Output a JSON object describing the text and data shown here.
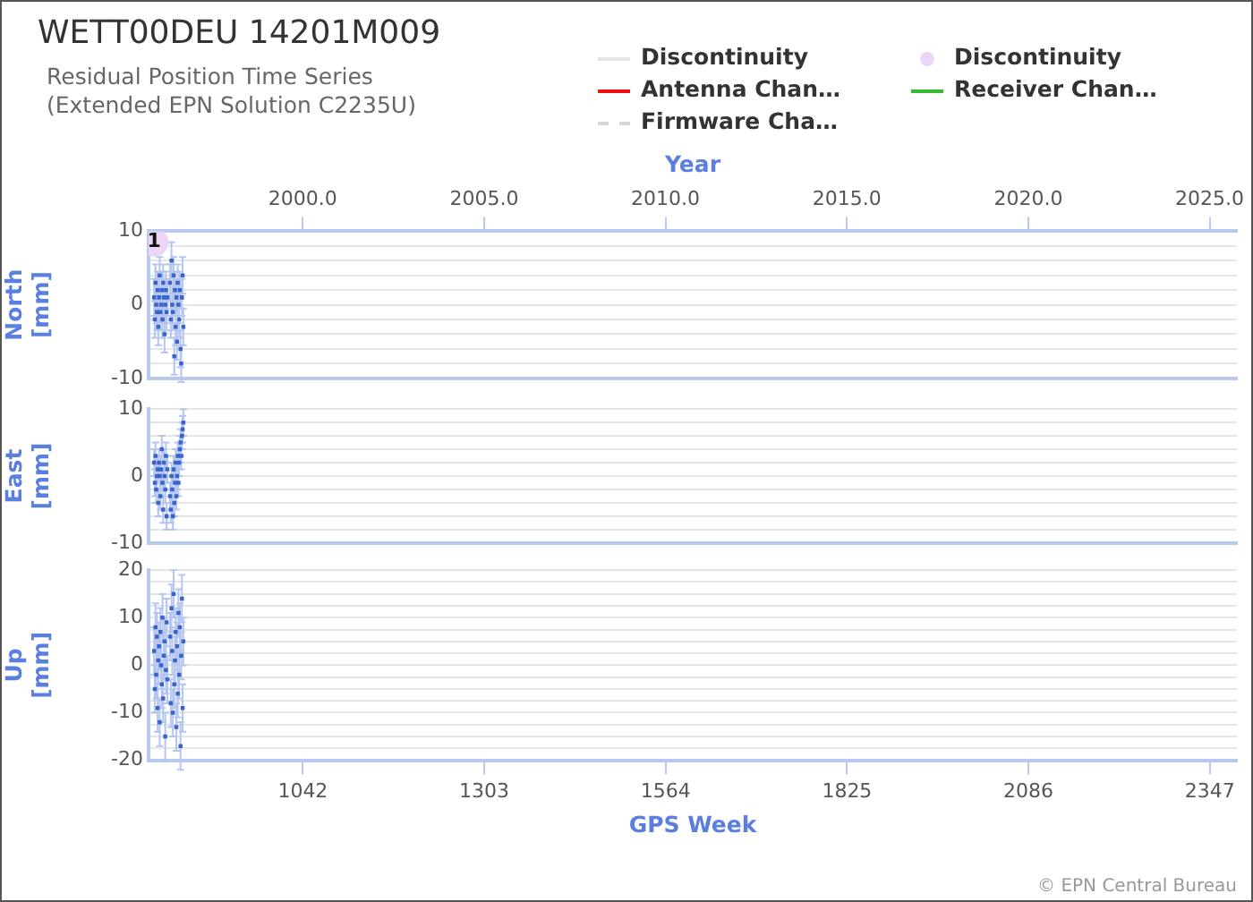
{
  "chart_data": [
    {
      "type": "scatter",
      "annotations": [
        {
          "text": "1",
          "x": 828,
          "y": 8.5
        }
      ],
      "title": "WETT00DEU 14201M009",
      "subtitle": "Residual Position Time Series\n(Extended EPN Solution C2235U)",
      "ylabel": "North [mm]",
      "x2label": "Year",
      "legend": "top right",
      "grid": "y",
      "marker": "square",
      "tick_labels": "y",
      "x": [
        828,
        829,
        830,
        831,
        832,
        833,
        834,
        835,
        836,
        837,
        838,
        839,
        840,
        841,
        842,
        843,
        844,
        845,
        846,
        847,
        851,
        852,
        853,
        854,
        855,
        856,
        857,
        858,
        859,
        860,
        861,
        862,
        863,
        864,
        865,
        866,
        867,
        868,
        869,
        870
      ],
      "xlim": [
        820,
        2386
      ],
      "xticks": [
        1042,
        1303,
        1564,
        1825,
        2086,
        2347
      ],
      "x2lim": [
        1995.75,
        2025.75
      ],
      "x2ticks": [
        {
          "value": 2000,
          "label": "2000.0"
        },
        {
          "value": 2005,
          "label": "2005.0"
        },
        {
          "value": 2010,
          "label": "2010.0"
        },
        {
          "value": 2015,
          "label": "2015.0"
        },
        {
          "value": 2020,
          "label": "2020.0"
        },
        {
          "value": 2025,
          "label": "2025.0"
        }
      ],
      "ylim": [
        -10,
        10
      ],
      "yticks": [
        -10,
        {
          "value": -8,
          "label": null
        },
        {
          "value": -6,
          "label": null
        },
        {
          "value": -4,
          "label": null
        },
        {
          "value": -2,
          "label": null
        },
        0,
        {
          "value": 2,
          "label": null
        },
        {
          "value": 4,
          "label": null
        },
        {
          "value": 6,
          "label": null
        },
        {
          "value": 8,
          "label": null
        },
        10
      ],
      "series": [
        {
          "color": "#3a64cc",
          "values": [
            1,
            -2,
            3,
            0,
            -1,
            2,
            -3,
            1,
            4,
            -1,
            0,
            2,
            -2,
            3,
            1,
            -4,
            0,
            2,
            -1,
            1,
            3,
            -2,
            6,
            0,
            -1,
            4,
            -7,
            2,
            -3,
            1,
            -5,
            3,
            0,
            -2,
            2,
            -6,
            -8,
            1,
            4,
            -3
          ],
          "errors": [
            2.5,
            2.5,
            2.5,
            2.5,
            2.5,
            2.5,
            2.5,
            2.5,
            2.5,
            2.5,
            2.5,
            2.5,
            2.5,
            2.5,
            2.5,
            2.5,
            2.5,
            2.5,
            2.5,
            2.5,
            2.5,
            2.5,
            2.5,
            2.5,
            2.5,
            2.5,
            2.5,
            2.5,
            2.5,
            2.5,
            2.5,
            2.5,
            2.5,
            2.5,
            2.5,
            2.5,
            2.5,
            2.5,
            2.5,
            2.5
          ]
        },
        {
          "type": "line",
          "name": "Discontinuity",
          "color": "#e6e6e6",
          "values": [
            null,
            null,
            null,
            null,
            null,
            null,
            null,
            null,
            null,
            null,
            null,
            null,
            null,
            null,
            null,
            null,
            null,
            null,
            null,
            null,
            null,
            null,
            null,
            null,
            null,
            null,
            null,
            null,
            null,
            null,
            null,
            null,
            null,
            null,
            null,
            null,
            null,
            null,
            null,
            null
          ]
        },
        {
          "name": "Discontinuity",
          "color": "#ecd6f7",
          "marker": "circle",
          "x": [
            828
          ],
          "values": [
            8.5
          ]
        },
        {
          "type": "line",
          "name": "Antenna Chan…",
          "color": "#ee1111",
          "values": [
            null,
            null,
            null,
            null,
            null,
            null,
            null,
            null,
            null,
            null,
            null,
            null,
            null,
            null,
            null,
            null,
            null,
            null,
            null,
            null,
            null,
            null,
            null,
            null,
            null,
            null,
            null,
            null,
            null,
            null,
            null,
            null,
            null,
            null,
            null,
            null,
            null,
            null,
            null,
            null
          ]
        },
        {
          "type": "line",
          "name": "Receiver Chan…",
          "color": "#33bb33",
          "values": [
            null,
            null,
            null,
            null,
            null,
            null,
            null,
            null,
            null,
            null,
            null,
            null,
            null,
            null,
            null,
            null,
            null,
            null,
            null,
            null,
            null,
            null,
            null,
            null,
            null,
            null,
            null,
            null,
            null,
            null,
            null,
            null,
            null,
            null,
            null,
            null,
            null,
            null,
            null,
            null
          ]
        },
        {
          "type": "line",
          "name": "Firmware Cha…",
          "color": "#d6d6d6",
          "line_style": "dashed",
          "values": [
            null,
            null,
            null,
            null,
            null,
            null,
            null,
            null,
            null,
            null,
            null,
            null,
            null,
            null,
            null,
            null,
            null,
            null,
            null,
            null,
            null,
            null,
            null,
            null,
            null,
            null,
            null,
            null,
            null,
            null,
            null,
            null,
            null,
            null,
            null,
            null,
            null,
            null,
            null,
            null
          ]
        }
      ]
    },
    {
      "type": "scatter",
      "ylabel": "East [mm]",
      "grid": "y",
      "marker": "square",
      "tick_labels": "y",
      "x": [
        828,
        829,
        830,
        831,
        832,
        833,
        834,
        835,
        836,
        837,
        838,
        839,
        840,
        841,
        842,
        843,
        844,
        845,
        846,
        847,
        851,
        852,
        853,
        854,
        855,
        856,
        857,
        858,
        859,
        860,
        861,
        862,
        863,
        864,
        865,
        866,
        867,
        868,
        869,
        870
      ],
      "xlim": [
        820,
        2386
      ],
      "xticks": [
        1042,
        1303,
        1564,
        1825,
        2086,
        2347
      ],
      "ylim": [
        -10,
        10
      ],
      "yticks": [
        -10,
        {
          "value": -8,
          "label": null
        },
        {
          "value": -6,
          "label": null
        },
        {
          "value": -4,
          "label": null
        },
        {
          "value": -2,
          "label": null
        },
        0,
        {
          "value": 2,
          "label": null
        },
        {
          "value": 4,
          "label": null
        },
        {
          "value": 6,
          "label": null
        },
        {
          "value": 8,
          "label": null
        },
        10
      ],
      "series": [
        {
          "color": "#3a64cc",
          "values": [
            2,
            -1,
            3,
            -2,
            0,
            1,
            -4,
            2,
            0,
            -3,
            1,
            4,
            -1,
            -5,
            2,
            0,
            -2,
            3,
            -6,
            1,
            -3,
            -5,
            0,
            -2,
            -6,
            1,
            -4,
            -1,
            2,
            -3,
            0,
            3,
            -1,
            2,
            4,
            5,
            3,
            6,
            7,
            8
          ],
          "errors": [
            2,
            2,
            2,
            2,
            2,
            2,
            2,
            2,
            2,
            2,
            2,
            2,
            2,
            2,
            2,
            2,
            2,
            2,
            2,
            2,
            2,
            2,
            2,
            2,
            2,
            2,
            2,
            2,
            2,
            2,
            2,
            2,
            2,
            2,
            2,
            2,
            2,
            2,
            2,
            2
          ]
        }
      ]
    },
    {
      "type": "scatter",
      "xlabel": "GPS Week",
      "ylabel": "Up [mm]",
      "grid": "y",
      "marker": "square",
      "annotations": [
        "© EPN Central Bureau"
      ],
      "x": [
        828,
        829,
        830,
        831,
        832,
        833,
        834,
        835,
        836,
        837,
        838,
        839,
        840,
        841,
        842,
        843,
        844,
        845,
        846,
        847,
        851,
        852,
        853,
        854,
        855,
        856,
        857,
        858,
        859,
        860,
        861,
        862,
        863,
        864,
        865,
        866,
        867,
        868,
        869,
        870
      ],
      "xlim": [
        820,
        2386
      ],
      "xticks": [
        1042,
        1303,
        1564,
        1825,
        2086,
        2347
      ],
      "ylim": [
        -20,
        20
      ],
      "yticks": [
        -20,
        {
          "value": -17.5,
          "label": null
        },
        {
          "value": -15,
          "label": null
        },
        {
          "value": -12.5,
          "label": null
        },
        -10,
        {
          "value": -7.5,
          "label": null
        },
        {
          "value": -5,
          "label": null
        },
        {
          "value": -2.5,
          "label": null
        },
        0,
        {
          "value": 2.5,
          "label": null
        },
        {
          "value": 5,
          "label": null
        },
        {
          "value": 7.5,
          "label": null
        },
        10,
        {
          "value": 12.5,
          "label": null
        },
        {
          "value": 15,
          "label": null
        },
        {
          "value": 17.5,
          "label": null
        },
        20
      ],
      "series": [
        {
          "color": "#3a64cc",
          "values": [
            3,
            -5,
            8,
            -2,
            6,
            -9,
            1,
            4,
            -12,
            7,
            0,
            -4,
            10,
            -7,
            2,
            5,
            -15,
            -1,
            9,
            -3,
            6,
            -8,
            12,
            3,
            -10,
            15,
            -4,
            1,
            7,
            -13,
            4,
            -6,
            11,
            -2,
            8,
            -17,
            2,
            14,
            -9,
            5
          ],
          "errors": [
            5,
            5,
            5,
            5,
            5,
            5,
            5,
            5,
            5,
            5,
            5,
            5,
            5,
            5,
            5,
            5,
            5,
            5,
            5,
            5,
            5,
            5,
            5,
            5,
            5,
            5,
            5,
            5,
            5,
            5,
            5,
            5,
            5,
            5,
            5,
            5,
            5,
            5,
            5,
            5
          ]
        }
      ]
    }
  ]
}
